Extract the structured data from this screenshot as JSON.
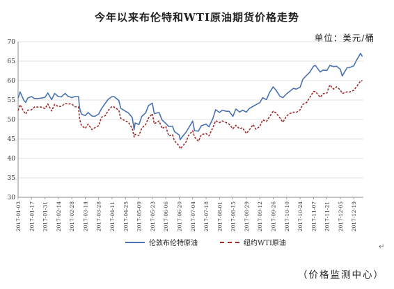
{
  "title": "今年以来布伦特和WTI原油期货价格走势",
  "unit_label": "单位：美元/桶",
  "source": "（价格监测中心）",
  "return_mark": "↵",
  "colors": {
    "brent": "#4a72b0",
    "wti": "#9b2d2d",
    "grid": "#d9d9d9",
    "axis": "#8c8c8c"
  },
  "chart_data": {
    "type": "line",
    "title": "今年以来布伦特和WTI原油期货价格走势",
    "ylabel": "单位：美元/桶",
    "ylim": [
      30,
      70
    ],
    "yticks": [
      30,
      35,
      40,
      45,
      50,
      55,
      60,
      65,
      70
    ],
    "grid": "horizontal",
    "legend_position": "bottom",
    "x_tick_labels": [
      "2017-01-03",
      "2017-01-17",
      "2017-01-31",
      "2017-02-14",
      "2017-02-28",
      "2017-03-14",
      "2017-03-28",
      "2017-04-11",
      "2017-04-25",
      "2017-05-09",
      "2017-05-23",
      "2017-06-06",
      "2017-06-20",
      "2017-07-04",
      "2017-07-18",
      "2017-08-01",
      "2017-08-15",
      "2017-08-29",
      "2017-09-12",
      "2017-09-26",
      "2017-10-10",
      "2017-10-24",
      "2017-11-07",
      "2017-11-21",
      "2017-12-05",
      "2017-12-19"
    ],
    "series": [
      {
        "name": "伦敦布伦特原油",
        "style": "solid",
        "points": [
          [
            "2017-01-03",
            55.5
          ],
          [
            "2017-01-05",
            57.1
          ],
          [
            "2017-01-09",
            54.9
          ],
          [
            "2017-01-11",
            54.4
          ],
          [
            "2017-01-13",
            55.5
          ],
          [
            "2017-01-17",
            55.9
          ],
          [
            "2017-01-20",
            55.4
          ],
          [
            "2017-01-24",
            55.4
          ],
          [
            "2017-01-27",
            55.5
          ],
          [
            "2017-01-31",
            55.7
          ],
          [
            "2017-02-03",
            56.8
          ],
          [
            "2017-02-07",
            55.1
          ],
          [
            "2017-02-10",
            56.7
          ],
          [
            "2017-02-14",
            55.9
          ],
          [
            "2017-02-17",
            55.8
          ],
          [
            "2017-02-21",
            56.7
          ],
          [
            "2017-02-24",
            56.0
          ],
          [
            "2017-02-28",
            55.6
          ],
          [
            "2017-03-03",
            55.9
          ],
          [
            "2017-03-07",
            55.9
          ],
          [
            "2017-03-08",
            53.1
          ],
          [
            "2017-03-10",
            51.4
          ],
          [
            "2017-03-14",
            51.0
          ],
          [
            "2017-03-17",
            51.8
          ],
          [
            "2017-03-21",
            50.9
          ],
          [
            "2017-03-24",
            50.8
          ],
          [
            "2017-03-28",
            51.4
          ],
          [
            "2017-03-31",
            52.8
          ],
          [
            "2017-04-04",
            54.2
          ],
          [
            "2017-04-07",
            55.2
          ],
          [
            "2017-04-11",
            55.9
          ],
          [
            "2017-04-13",
            55.9
          ],
          [
            "2017-04-18",
            54.9
          ],
          [
            "2017-04-20",
            52.9
          ],
          [
            "2017-04-25",
            52.1
          ],
          [
            "2017-04-28",
            51.7
          ],
          [
            "2017-05-02",
            50.5
          ],
          [
            "2017-05-04",
            47.4
          ],
          [
            "2017-05-05",
            49.1
          ],
          [
            "2017-05-09",
            48.7
          ],
          [
            "2017-05-12",
            50.8
          ],
          [
            "2017-05-16",
            51.7
          ],
          [
            "2017-05-19",
            53.6
          ],
          [
            "2017-05-23",
            54.2
          ],
          [
            "2017-05-25",
            51.5
          ],
          [
            "2017-05-30",
            51.8
          ],
          [
            "2017-06-02",
            49.9
          ],
          [
            "2017-06-06",
            49.0
          ],
          [
            "2017-06-09",
            48.2
          ],
          [
            "2017-06-13",
            48.3
          ],
          [
            "2017-06-15",
            46.9
          ],
          [
            "2017-06-20",
            46.0
          ],
          [
            "2017-06-21",
            44.8
          ],
          [
            "2017-06-23",
            45.5
          ],
          [
            "2017-06-27",
            46.7
          ],
          [
            "2017-06-30",
            47.9
          ],
          [
            "2017-07-04",
            49.6
          ],
          [
            "2017-07-06",
            47.1
          ],
          [
            "2017-07-10",
            47.0
          ],
          [
            "2017-07-13",
            48.4
          ],
          [
            "2017-07-18",
            48.8
          ],
          [
            "2017-07-21",
            48.1
          ],
          [
            "2017-07-25",
            50.2
          ],
          [
            "2017-07-28",
            52.5
          ],
          [
            "2017-08-01",
            51.8
          ],
          [
            "2017-08-04",
            52.4
          ],
          [
            "2017-08-08",
            52.1
          ],
          [
            "2017-08-11",
            52.1
          ],
          [
            "2017-08-15",
            50.8
          ],
          [
            "2017-08-18",
            52.7
          ],
          [
            "2017-08-22",
            51.9
          ],
          [
            "2017-08-25",
            52.4
          ],
          [
            "2017-08-29",
            51.9
          ],
          [
            "2017-09-01",
            52.8
          ],
          [
            "2017-09-05",
            53.4
          ],
          [
            "2017-09-08",
            53.8
          ],
          [
            "2017-09-12",
            54.3
          ],
          [
            "2017-09-15",
            55.6
          ],
          [
            "2017-09-19",
            55.1
          ],
          [
            "2017-09-22",
            56.9
          ],
          [
            "2017-09-26",
            58.4
          ],
          [
            "2017-09-29",
            57.5
          ],
          [
            "2017-10-03",
            56.0
          ],
          [
            "2017-10-06",
            55.6
          ],
          [
            "2017-10-10",
            56.6
          ],
          [
            "2017-10-13",
            57.2
          ],
          [
            "2017-10-17",
            58.0
          ],
          [
            "2017-10-20",
            57.8
          ],
          [
            "2017-10-24",
            58.3
          ],
          [
            "2017-10-27",
            60.4
          ],
          [
            "2017-10-31",
            61.4
          ],
          [
            "2017-11-03",
            62.1
          ],
          [
            "2017-11-07",
            63.7
          ],
          [
            "2017-11-09",
            63.9
          ],
          [
            "2017-11-14",
            62.2
          ],
          [
            "2017-11-17",
            62.7
          ],
          [
            "2017-11-21",
            62.6
          ],
          [
            "2017-11-24",
            63.9
          ],
          [
            "2017-11-28",
            63.6
          ],
          [
            "2017-12-01",
            63.7
          ],
          [
            "2017-12-05",
            62.9
          ],
          [
            "2017-12-07",
            61.2
          ],
          [
            "2017-12-12",
            63.3
          ],
          [
            "2017-12-14",
            63.3
          ],
          [
            "2017-12-19",
            63.8
          ],
          [
            "2017-12-22",
            65.3
          ],
          [
            "2017-12-26",
            67.0
          ],
          [
            "2017-12-28",
            66.2
          ]
        ]
      },
      {
        "name": "纽约WTI原油",
        "style": "dashed",
        "points": [
          [
            "2017-01-03",
            52.3
          ],
          [
            "2017-01-05",
            53.8
          ],
          [
            "2017-01-09",
            52.0
          ],
          [
            "2017-01-11",
            51.4
          ],
          [
            "2017-01-13",
            52.4
          ],
          [
            "2017-01-17",
            52.5
          ],
          [
            "2017-01-20",
            53.2
          ],
          [
            "2017-01-24",
            53.2
          ],
          [
            "2017-01-27",
            53.2
          ],
          [
            "2017-01-31",
            52.8
          ],
          [
            "2017-02-03",
            54.0
          ],
          [
            "2017-02-07",
            52.2
          ],
          [
            "2017-02-10",
            53.9
          ],
          [
            "2017-02-14",
            53.3
          ],
          [
            "2017-02-17",
            53.4
          ],
          [
            "2017-02-21",
            54.1
          ],
          [
            "2017-02-24",
            54.0
          ],
          [
            "2017-02-28",
            54.0
          ],
          [
            "2017-03-03",
            53.3
          ],
          [
            "2017-03-07",
            53.2
          ],
          [
            "2017-03-08",
            50.3
          ],
          [
            "2017-03-10",
            48.5
          ],
          [
            "2017-03-14",
            47.7
          ],
          [
            "2017-03-17",
            48.8
          ],
          [
            "2017-03-21",
            47.4
          ],
          [
            "2017-03-24",
            47.9
          ],
          [
            "2017-03-28",
            48.4
          ],
          [
            "2017-03-31",
            50.6
          ],
          [
            "2017-04-04",
            51.0
          ],
          [
            "2017-04-07",
            52.3
          ],
          [
            "2017-04-11",
            53.4
          ],
          [
            "2017-04-13",
            53.2
          ],
          [
            "2017-04-18",
            52.4
          ],
          [
            "2017-04-20",
            50.3
          ],
          [
            "2017-04-25",
            49.6
          ],
          [
            "2017-04-28",
            49.3
          ],
          [
            "2017-05-02",
            47.7
          ],
          [
            "2017-05-04",
            45.5
          ],
          [
            "2017-05-05",
            46.2
          ],
          [
            "2017-05-09",
            45.9
          ],
          [
            "2017-05-12",
            47.8
          ],
          [
            "2017-05-16",
            48.7
          ],
          [
            "2017-05-19",
            50.4
          ],
          [
            "2017-05-23",
            51.5
          ],
          [
            "2017-05-25",
            48.9
          ],
          [
            "2017-05-30",
            49.6
          ],
          [
            "2017-06-02",
            47.7
          ],
          [
            "2017-06-06",
            48.2
          ],
          [
            "2017-06-09",
            45.8
          ],
          [
            "2017-06-13",
            46.1
          ],
          [
            "2017-06-15",
            44.5
          ],
          [
            "2017-06-20",
            43.2
          ],
          [
            "2017-06-21",
            42.5
          ],
          [
            "2017-06-23",
            43.0
          ],
          [
            "2017-06-27",
            44.2
          ],
          [
            "2017-06-30",
            46.0
          ],
          [
            "2017-07-04",
            47.1
          ],
          [
            "2017-07-06",
            45.5
          ],
          [
            "2017-07-10",
            44.4
          ],
          [
            "2017-07-13",
            46.1
          ],
          [
            "2017-07-18",
            46.4
          ],
          [
            "2017-07-21",
            45.8
          ],
          [
            "2017-07-25",
            47.9
          ],
          [
            "2017-07-28",
            49.7
          ],
          [
            "2017-08-01",
            49.2
          ],
          [
            "2017-08-04",
            49.6
          ],
          [
            "2017-08-08",
            49.2
          ],
          [
            "2017-08-11",
            48.8
          ],
          [
            "2017-08-15",
            47.6
          ],
          [
            "2017-08-18",
            48.5
          ],
          [
            "2017-08-22",
            47.6
          ],
          [
            "2017-08-25",
            47.9
          ],
          [
            "2017-08-29",
            46.4
          ],
          [
            "2017-09-01",
            47.3
          ],
          [
            "2017-09-05",
            48.7
          ],
          [
            "2017-09-08",
            47.5
          ],
          [
            "2017-09-12",
            48.2
          ],
          [
            "2017-09-15",
            49.9
          ],
          [
            "2017-09-19",
            49.5
          ],
          [
            "2017-09-22",
            50.7
          ],
          [
            "2017-09-26",
            52.1
          ],
          [
            "2017-09-29",
            51.7
          ],
          [
            "2017-10-03",
            50.4
          ],
          [
            "2017-10-06",
            49.3
          ],
          [
            "2017-10-10",
            50.9
          ],
          [
            "2017-10-13",
            51.5
          ],
          [
            "2017-10-17",
            51.9
          ],
          [
            "2017-10-20",
            51.8
          ],
          [
            "2017-10-24",
            52.5
          ],
          [
            "2017-10-27",
            53.9
          ],
          [
            "2017-10-31",
            54.4
          ],
          [
            "2017-11-03",
            55.6
          ],
          [
            "2017-11-07",
            57.2
          ],
          [
            "2017-11-09",
            57.2
          ],
          [
            "2017-11-14",
            55.7
          ],
          [
            "2017-11-17",
            56.6
          ],
          [
            "2017-11-21",
            56.8
          ],
          [
            "2017-11-24",
            58.9
          ],
          [
            "2017-11-28",
            57.8
          ],
          [
            "2017-12-01",
            58.4
          ],
          [
            "2017-12-05",
            57.6
          ],
          [
            "2017-12-07",
            56.7
          ],
          [
            "2017-12-12",
            57.1
          ],
          [
            "2017-12-14",
            57.0
          ],
          [
            "2017-12-19",
            57.5
          ],
          [
            "2017-12-22",
            58.5
          ],
          [
            "2017-12-26",
            59.9
          ],
          [
            "2017-12-28",
            60.0
          ]
        ]
      }
    ]
  }
}
